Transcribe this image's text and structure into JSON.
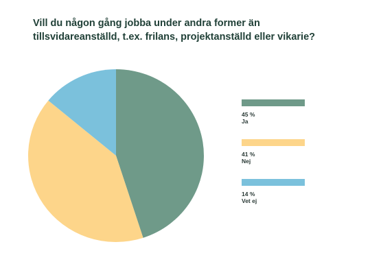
{
  "title_lines": [
    "Vill du någon gång jobba under andra former än",
    "tillsvidareanställd, t.ex. frilans, projektanställd eller vikarie?"
  ],
  "chart_data": {
    "type": "pie",
    "title": "Vill du någon gång jobba under andra former än tillsvidareanställd, t.ex. frilans, projektanställd eller vikarie?",
    "categories": [
      "Ja",
      "Nej",
      "Vet ej"
    ],
    "values": [
      45,
      41,
      14
    ],
    "value_labels": [
      "45 %",
      "41 %",
      "14 %"
    ],
    "colors": [
      "#6f9a89",
      "#fdd58a",
      "#7bc1dc"
    ],
    "legend_position": "right",
    "start": "top",
    "direction": "clockwise"
  }
}
